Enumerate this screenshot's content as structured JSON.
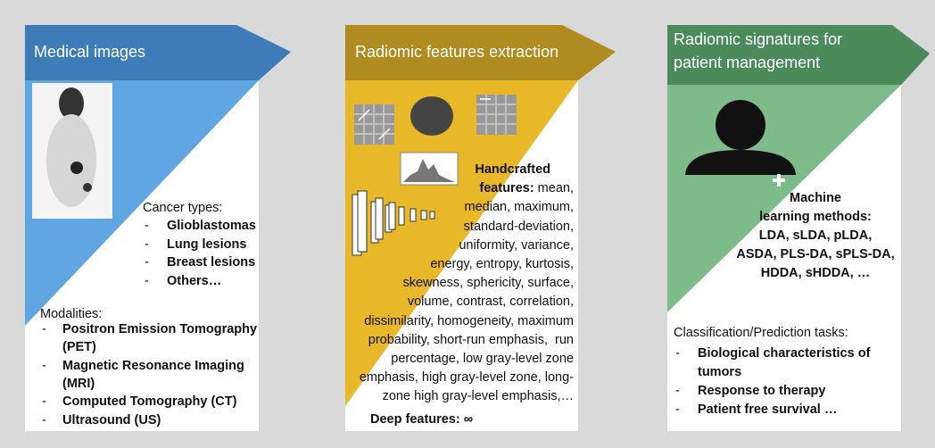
{
  "panel1": {
    "title": "Medical images",
    "cancer_types": {
      "heading": "Cancer types:",
      "items": [
        [
          "Glioblastomas"
        ],
        [
          "Lung lesions"
        ],
        [
          "Breast lesions"
        ],
        [
          "Others…"
        ]
      ]
    },
    "modalities": {
      "heading": "Modalities:",
      "items": [
        [
          "Positron Emission Tomography",
          "(PET)"
        ],
        [
          "Magnetic Resonance Imaging",
          "(MRI)"
        ],
        [
          "Computed Tomography (CT)"
        ],
        [
          "Ultrasound (US)"
        ]
      ]
    }
  },
  "panel2": {
    "title": "Radiomic features extraction",
    "handcrafted_label": [
      "Handcrafted",
      "features:"
    ],
    "handcrafted_lines": [
      " mean,",
      "median, maximum,",
      "standard-deviation,",
      "uniformity, variance,",
      "energy, entropy, kurtosis,",
      "skewness, sphericity, surface,",
      "volume, contrast, correlation,",
      "dissimilarity, homogeneity, maximum",
      "probability, short-run emphasis,  run",
      "percentage, low gray-level zone",
      "emphasis, high gray-level zone, long-",
      "zone high gray-level emphasis,…"
    ],
    "deep_label": "Deep features:",
    "deep_value": "∞"
  },
  "panel3": {
    "title": [
      "Radiomic signatures for",
      "patient management"
    ],
    "methods_label": [
      "Machine",
      "learning methods:"
    ],
    "methods_lines": [
      "LDA, sLDA, pLDA,",
      "ASDA, PLS-DA, sPLS-DA,",
      "HDDA, sHDDA, …"
    ],
    "tasks": {
      "heading": "Classification/Prediction tasks:",
      "items": [
        [
          "Biological characteristics of",
          "tumors"
        ],
        [
          "Response to therapy"
        ],
        [
          "Patient free survival …"
        ]
      ]
    }
  }
}
